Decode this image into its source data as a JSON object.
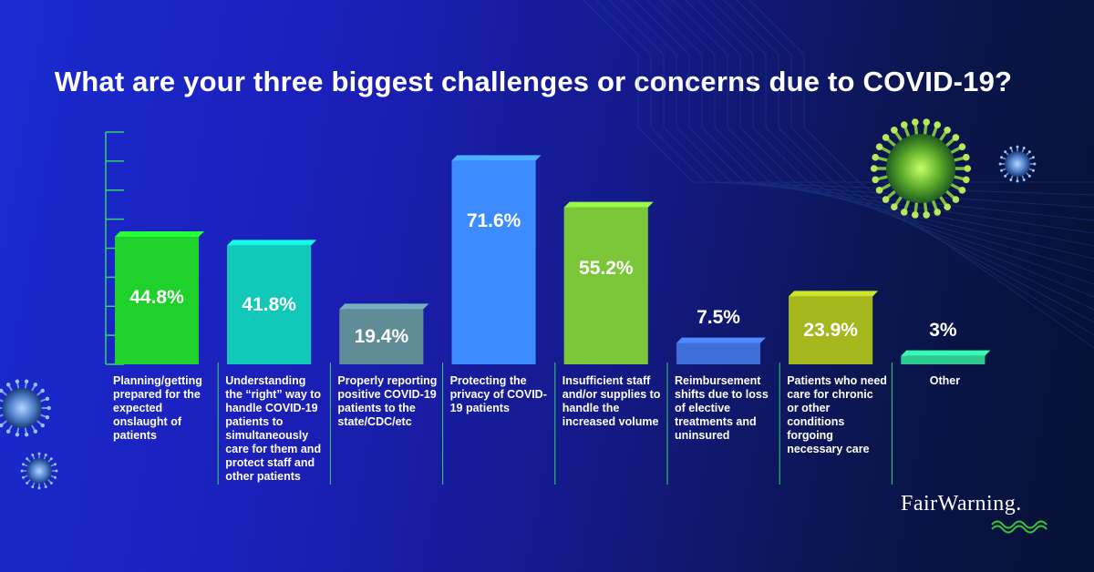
{
  "chart_data": {
    "type": "bar",
    "title": "What are your three biggest challenges or concerns due to COVID-19?",
    "ylim": [
      0,
      80
    ],
    "categories": [
      "Planning/getting prepared for the expected onslaught of patients",
      "Understanding the “right” way to handle COVID-19 patients to simultaneously care for them and protect staff and other patients",
      "Properly reporting positive COVID-19 patients to the state/CDC/etc",
      "Protecting the privacy of COVID-19 patients",
      "Insufficient staff and/or supplies to handle the increased volume",
      "Reimbursement shifts due to loss of elective treatments and uninsured",
      "Patients who need care for chronic or other conditions forgoing necessary care",
      "Other"
    ],
    "values": [
      44.8,
      41.8,
      19.4,
      71.6,
      55.2,
      7.5,
      23.9,
      3
    ],
    "value_labels": [
      "44.8%",
      "41.8%",
      "19.4%",
      "71.6%",
      "55.2%",
      "7.5%",
      "23.9%",
      "3%"
    ],
    "colors": [
      "#1fd12b",
      "#12c8b8",
      "#5f8c96",
      "#3d8cff",
      "#7cc63a",
      "#3e6fd8",
      "#a4b81e",
      "#2ec98e"
    ],
    "grid": false
  },
  "logo": {
    "text": "FairWarning."
  }
}
